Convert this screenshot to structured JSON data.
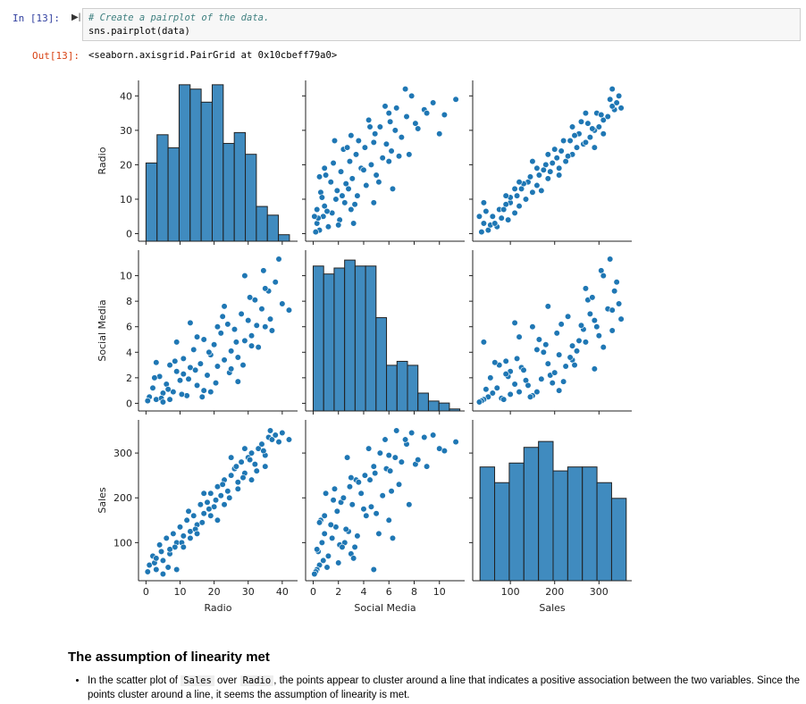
{
  "cell": {
    "in_prompt": "In [13]:",
    "code": [
      "# Create a pairplot of the data.",
      "sns.pairplot(data)"
    ],
    "out_prompt": "Out[13]:",
    "output": "<seaborn.axisgrid.PairGrid at 0x10cbeff79a0>"
  },
  "chart_data": {
    "type": "pairplot",
    "color": "#1f77b4",
    "variables": [
      {
        "label": "Radio",
        "lim": [
          -2.2,
          44.5
        ],
        "ticks": [
          0,
          10,
          20,
          30,
          40
        ],
        "bins": [
          0,
          3.24,
          6.48,
          9.72,
          12.96,
          16.2,
          19.44,
          22.68,
          25.92,
          29.16,
          32.4,
          35.64,
          38.88,
          42.12
        ],
        "counts": [
          36,
          49,
          43,
          72,
          70,
          64,
          72,
          45,
          50,
          40,
          16,
          12,
          3
        ],
        "count_lim": [
          0,
          74
        ]
      },
      {
        "label": "Social Media",
        "lim": [
          -0.6,
          12
        ],
        "ticks": [
          0,
          2,
          4,
          6,
          8,
          10
        ],
        "bins": [
          0,
          0.83,
          1.66,
          2.49,
          3.32,
          4.15,
          4.98,
          5.81,
          6.64,
          7.47,
          8.3,
          9.13,
          9.96,
          10.79,
          11.62
        ],
        "counts": [
          73,
          69,
          72,
          76,
          73,
          73,
          47,
          23,
          25,
          23,
          9,
          5,
          4,
          1
        ],
        "count_lim": [
          0,
          81
        ]
      },
      {
        "label": "Sales",
        "lim": [
          15,
          374
        ],
        "ticks": [
          100,
          200,
          300
        ],
        "bins": [
          31.5,
          64.5,
          97.5,
          130.5,
          163.5,
          196.5,
          229.5,
          262.5,
          295.5,
          328.5,
          361.5
        ],
        "counts": [
          58,
          50,
          60,
          68,
          71,
          56,
          58,
          58,
          50,
          42
        ],
        "count_lim": [
          0,
          82
        ]
      }
    ],
    "samples": [
      [
        1,
        2,
        3,
        4,
        5,
        6,
        7,
        8,
        9,
        10,
        11,
        12,
        13,
        14,
        15,
        16,
        17,
        18,
        19,
        20,
        21,
        22,
        23,
        24,
        25,
        26,
        27,
        28,
        29,
        30,
        31,
        32,
        33,
        34,
        35,
        36,
        37,
        38,
        40,
        42,
        0.5,
        2.5,
        4.5,
        6.5,
        8.5,
        10.5,
        12.5,
        14.5,
        16.5,
        18.5,
        20.5,
        22.5,
        24.5,
        26.5,
        28.5,
        30.5,
        32.5,
        34.5,
        36.5,
        39,
        3,
        7,
        11,
        15,
        19,
        23,
        27,
        31,
        35,
        13,
        9,
        17,
        21,
        25,
        5,
        29
      ],
      [
        0.5,
        1.2,
        0.3,
        2.1,
        0.8,
        1.5,
        3.0,
        0.9,
        2.5,
        1.8,
        3.5,
        0.6,
        2.8,
        4.2,
        1.4,
        3.1,
        5.0,
        2.2,
        3.8,
        4.6,
        2.9,
        5.5,
        3.4,
        6.2,
        4.1,
        5.8,
        3.6,
        7.0,
        4.9,
        6.5,
        5.3,
        8.1,
        4.4,
        7.4,
        6.0,
        8.8,
        5.7,
        9.5,
        7.8,
        7.3,
        0.2,
        2.0,
        0.4,
        1.1,
        3.3,
        0.7,
        1.9,
        2.6,
        0.5,
        4.0,
        1.6,
        6.8,
        2.4,
        4.8,
        3.0,
        8.3,
        6.1,
        10.4,
        6.6,
        11.3,
        3.2,
        0.3,
        2.3,
        5.2,
        0.9,
        7.6,
        1.7,
        4.5,
        9.0,
        6.3,
        4.8,
        1.0,
        6.0,
        2.7,
        0.1,
        10.0
      ],
      [
        50,
        70,
        40,
        95,
        60,
        110,
        75,
        120,
        100,
        135,
        115,
        150,
        125,
        160,
        140,
        185,
        165,
        190,
        210,
        180,
        225,
        205,
        240,
        215,
        250,
        265,
        235,
        280,
        255,
        290,
        300,
        275,
        310,
        320,
        295,
        335,
        330,
        340,
        345,
        330,
        35,
        55,
        80,
        45,
        90,
        100,
        170,
        130,
        145,
        175,
        195,
        230,
        200,
        270,
        245,
        285,
        260,
        305,
        350,
        325,
        65,
        85,
        90,
        120,
        160,
        185,
        220,
        240,
        270,
        110,
        40,
        210,
        150,
        290,
        30,
        310
      ]
    ]
  },
  "markdown": {
    "heading": "The assumption of linearity met",
    "bullet": [
      "In the scatter plot of ",
      "Sales",
      " over ",
      "Radio",
      ", the points appear to cluster around a line that indicates a positive association between the two variables. Since the points cluster around a line, it seems the assumption of linearity is met."
    ]
  }
}
